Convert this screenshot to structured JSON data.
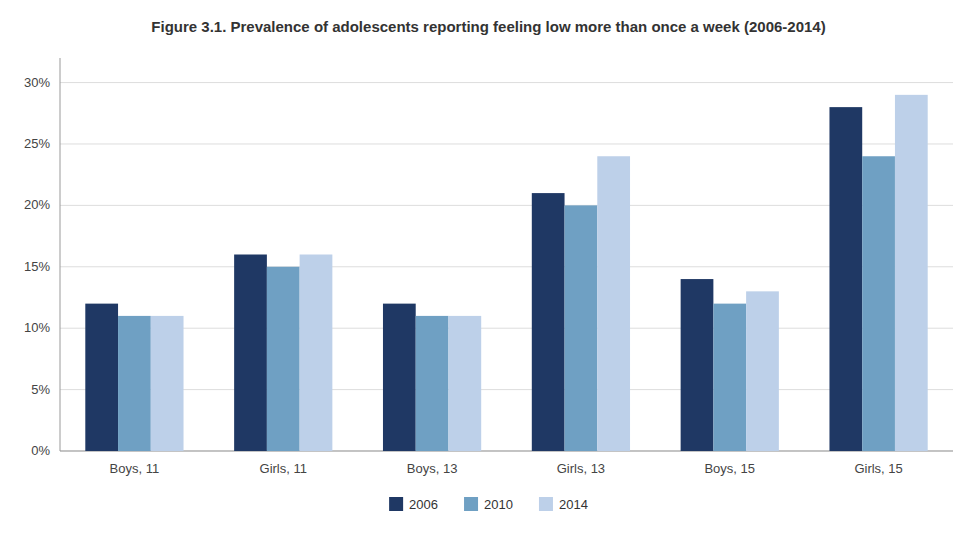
{
  "chart_data": {
    "type": "bar",
    "title": "Figure 3.1. Prevalence of adolescents reporting feeling low more than once a week (2006-2014)",
    "categories": [
      "Boys, 11",
      "Girls, 11",
      "Boys, 13",
      "Girls, 13",
      "Boys, 15",
      "Girls, 15"
    ],
    "series": [
      {
        "name": "2006",
        "color": "#1f3864",
        "values": [
          12,
          16,
          12,
          21,
          14,
          28
        ]
      },
      {
        "name": "2010",
        "color": "#6fa0c3",
        "values": [
          11,
          15,
          11,
          20,
          12,
          24
        ]
      },
      {
        "name": "2014",
        "color": "#bdd0e9",
        "values": [
          11,
          16,
          11,
          24,
          13,
          29
        ]
      }
    ],
    "ylim": [
      0,
      32
    ],
    "yticks": [
      {
        "value": 0,
        "label": "0%"
      },
      {
        "value": 5,
        "label": "5%"
      },
      {
        "value": 10,
        "label": "10%"
      },
      {
        "value": 15,
        "label": "15%"
      },
      {
        "value": 20,
        "label": "20%"
      },
      {
        "value": 25,
        "label": "25%"
      },
      {
        "value": 30,
        "label": "30%"
      }
    ],
    "grid": true,
    "legend": "bottom"
  }
}
